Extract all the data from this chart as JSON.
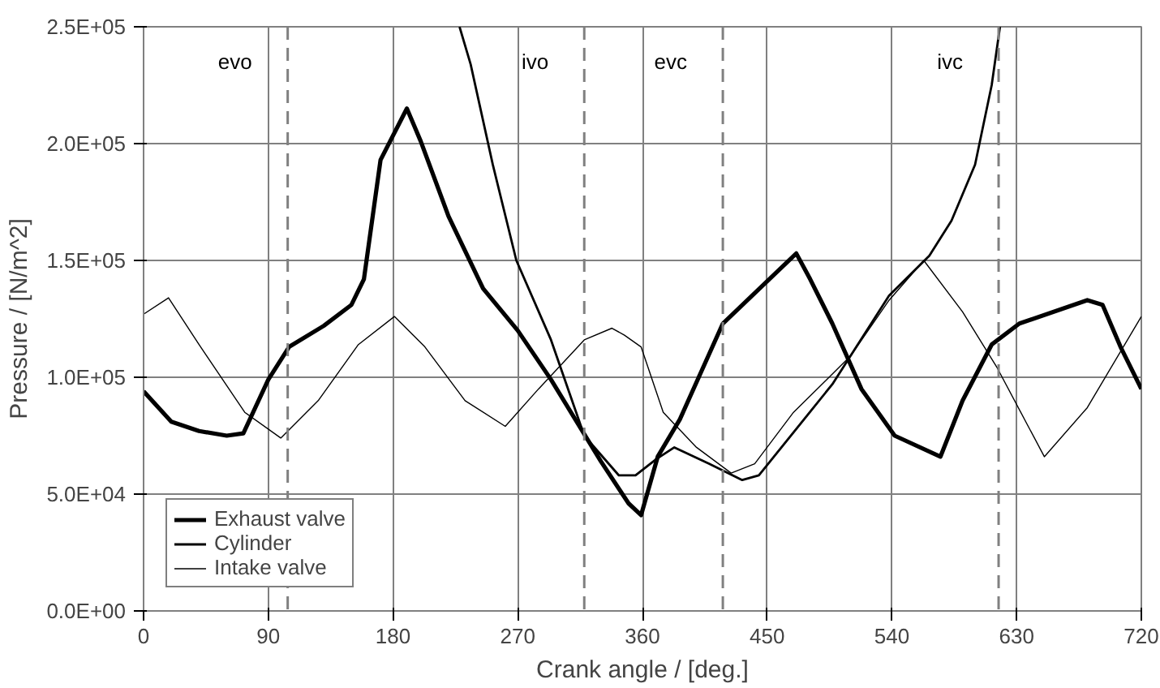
{
  "chart_data": {
    "type": "line",
    "xlabel": "Crank angle / [deg.]",
    "ylabel": "Pressure / [N/m^2]",
    "xlim": [
      0,
      720
    ],
    "xticks": [
      0,
      90,
      180,
      270,
      360,
      450,
      540,
      630,
      720
    ],
    "ylim": [
      0,
      250000
    ],
    "yticks": [
      {
        "value": 0,
        "label": "0.0E+00"
      },
      {
        "value": 50000,
        "label": "5.0E+04"
      },
      {
        "value": 100000,
        "label": "1.0E+05"
      },
      {
        "value": 150000,
        "label": "1.5E+05"
      },
      {
        "value": 200000,
        "label": "2.0E+05"
      },
      {
        "value": 250000,
        "label": "2.5E+05"
      }
    ],
    "grid": true,
    "legend": "bottom left",
    "marker": "none",
    "line_style": "solid",
    "series": [
      {
        "name": "Exhaust valve",
        "color": "#000000",
        "x": [
          0,
          20,
          40,
          60,
          72,
          90,
          105,
          130,
          150,
          159,
          171,
          190,
          200,
          220,
          245,
          270,
          294,
          330,
          350,
          359,
          371,
          387,
          418,
          448,
          471,
          481,
          497,
          518,
          542,
          575,
          591,
          612,
          632,
          681,
          692,
          705,
          720
        ],
        "values": [
          94000,
          81000,
          77000,
          75000,
          76000,
          99000,
          113000,
          122000,
          131000,
          142000,
          193000,
          215000,
          201000,
          169000,
          138000,
          120000,
          99000,
          64000,
          46000,
          41000,
          66000,
          82000,
          123000,
          140000,
          153000,
          142000,
          123000,
          95000,
          75000,
          66000,
          90000,
          114000,
          123000,
          133000,
          131000,
          113000,
          95000
        ]
      },
      {
        "name": "Cylinder",
        "color": "#000000",
        "x": [
          228,
          236,
          252,
          269,
          294,
          318,
          343,
          355,
          370,
          383,
          408,
          432,
          444,
          497,
          538,
          567,
          583,
          600,
          612,
          618
        ],
        "values": [
          250000,
          234000,
          191000,
          150000,
          116000,
          75000,
          58000,
          58000,
          65000,
          70000,
          63000,
          56000,
          58000,
          97000,
          135000,
          152000,
          167000,
          191000,
          225000,
          250000
        ]
      },
      {
        "name": "Intake valve",
        "color": "#000000",
        "x": [
          0,
          18,
          40,
          73,
          99,
          126,
          155,
          181,
          203,
          232,
          261,
          285,
          318,
          338,
          347,
          359,
          375,
          399,
          424,
          441,
          469,
          510,
          538,
          563,
          591,
          616,
          650,
          681,
          720
        ],
        "values": [
          127000,
          134000,
          114000,
          85000,
          74000,
          90000,
          114000,
          126000,
          113000,
          90000,
          79000,
          95000,
          116000,
          121000,
          118000,
          113000,
          85000,
          70000,
          59000,
          63000,
          85000,
          109000,
          133000,
          150000,
          128000,
          104000,
          66000,
          87000,
          126000
        ]
      }
    ],
    "ref_lines": [
      {
        "axis": "x",
        "value": 104,
        "label": "evo",
        "line_style": "dashed",
        "color": "#808080"
      },
      {
        "axis": "x",
        "value": 318,
        "label": "ivo",
        "line_style": "dashed",
        "color": "#808080"
      },
      {
        "axis": "x",
        "value": 418,
        "label": "evc",
        "line_style": "dashed",
        "color": "#808080"
      },
      {
        "axis": "x",
        "value": 617,
        "label": "ivc",
        "line_style": "dashed",
        "color": "#808080"
      }
    ]
  }
}
